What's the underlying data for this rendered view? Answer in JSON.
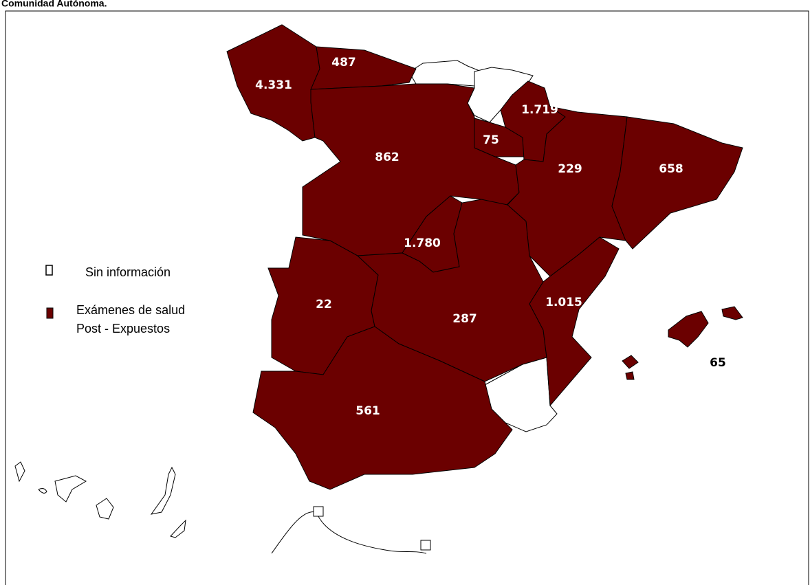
{
  "title": "Comunidad Autónoma.",
  "legend": [
    {
      "label": "Sin información"
    },
    {
      "lines": [
        "Exámenes de salud",
        "Post - Expuestos"
      ]
    }
  ],
  "regions": {
    "labels": [
      "4.331",
      "487",
      "1.719",
      "75",
      "862",
      "229",
      "658",
      "1.780",
      "22",
      "287",
      "1.015",
      "65",
      "561"
    ]
  }
}
